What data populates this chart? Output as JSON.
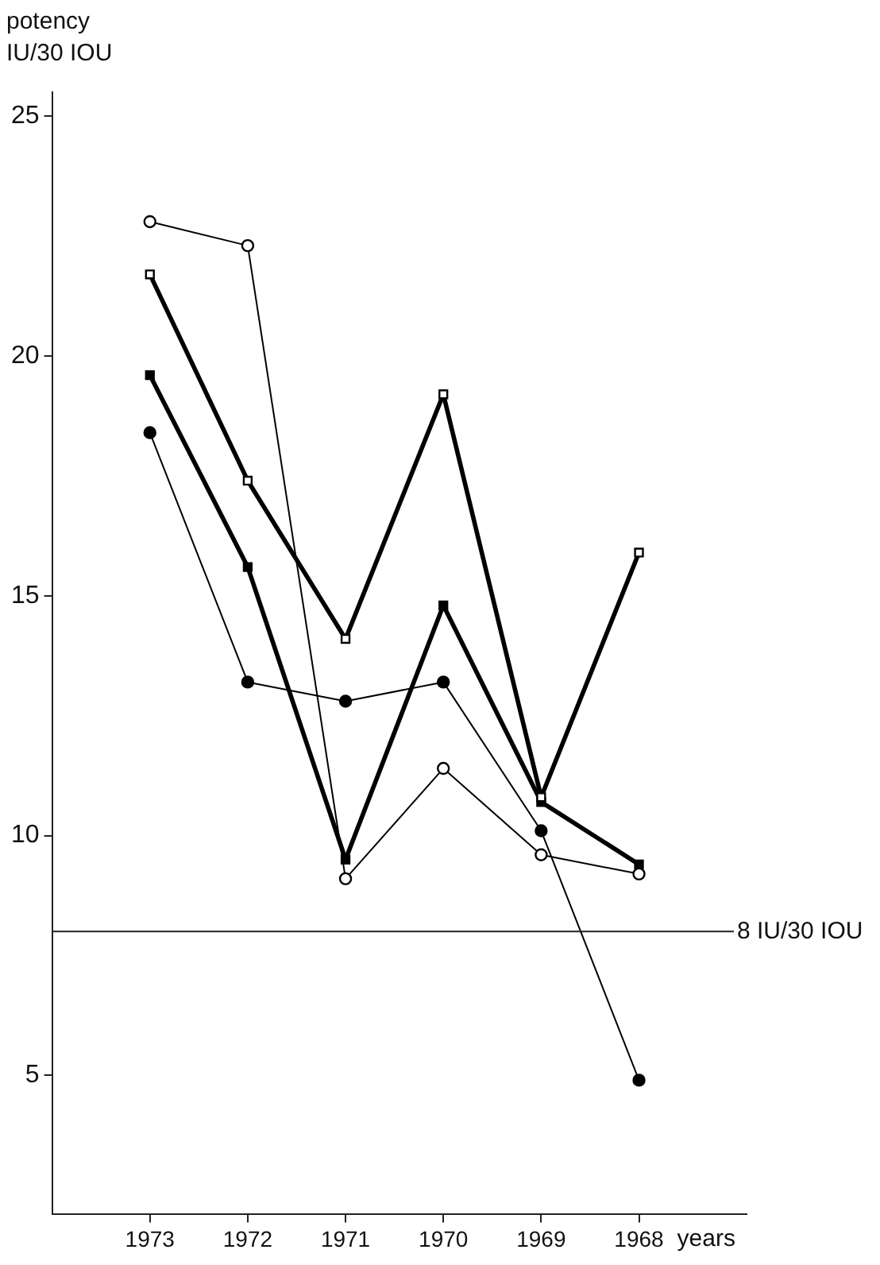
{
  "chart_data": {
    "type": "line",
    "ylabel": "potency\nIU/30 IOU",
    "xlabel": "years",
    "categories": [
      "1973",
      "1972",
      "1971",
      "1970",
      "1969",
      "1968"
    ],
    "series": [
      {
        "color": "#000000",
        "marker": "circle",
        "values": [
          22.8,
          22.3,
          9.1,
          11.4,
          9.6,
          9.2
        ]
      },
      {
        "color": "#000000",
        "marker": "square",
        "values": [
          21.7,
          17.4,
          14.1,
          19.2,
          10.8,
          15.9
        ]
      },
      {
        "color": "#000000",
        "marker": "square",
        "values": [
          19.6,
          15.6,
          9.5,
          14.8,
          10.7,
          9.4
        ]
      },
      {
        "color": "#000000",
        "marker": "circle",
        "values": [
          18.4,
          13.2,
          12.8,
          13.2,
          10.1,
          4.9
        ]
      }
    ],
    "ylim": [
      2.1,
      25.5
    ],
    "yticks": [
      5,
      10,
      15,
      20,
      25
    ],
    "ref_lines": [
      {
        "axis": "y",
        "value": 8,
        "label": "8 IU/30 IOU"
      }
    ],
    "grid": false,
    "legend": false,
    "line_style": "solid"
  }
}
